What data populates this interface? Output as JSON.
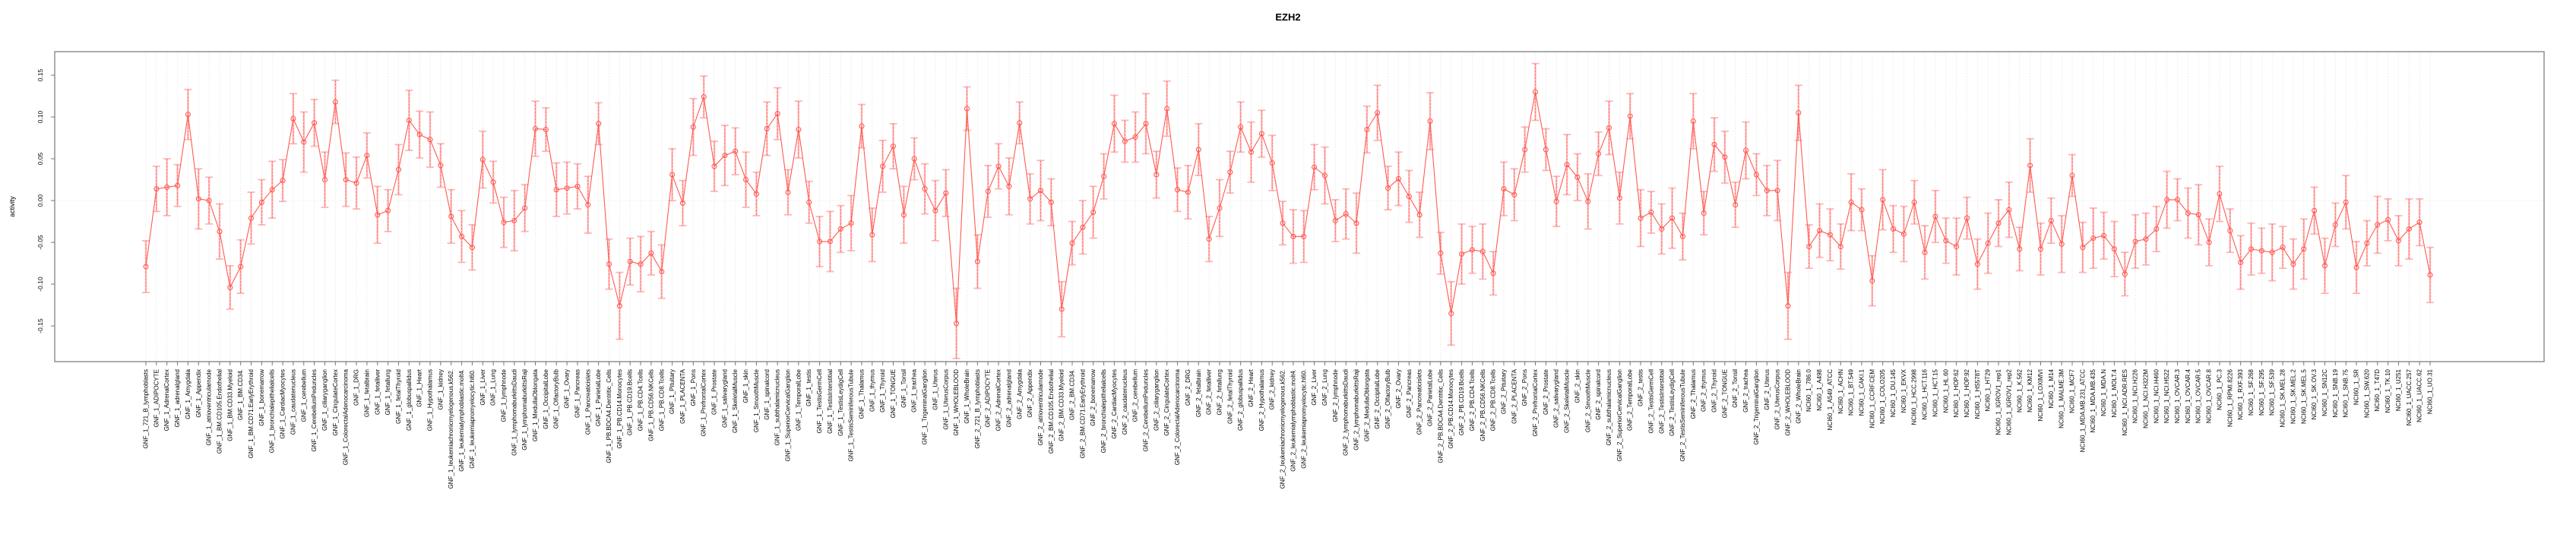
{
  "chart_data": {
    "type": "line",
    "title": "EZH2",
    "ylabel": "activity",
    "xlabel": "",
    "ylim": [
      -0.15,
      0.15
    ],
    "grid": "vertical-dotted-per-category-plus-zero-line",
    "legend": "none",
    "point_style": "open-circle-with-error-bars",
    "series_color": "#ff5a52",
    "error_color": "#ffadad",
    "grid_color": "#d8d8d8",
    "axis_color": "#888888",
    "y_ticks": [
      {
        "v": 0.15,
        "label": "0.15"
      },
      {
        "v": 0.1,
        "label": "0.10"
      },
      {
        "v": 0.05,
        "label": "0.05"
      },
      {
        "v": 0.0,
        "label": "0.00"
      },
      {
        "v": -0.05,
        "label": "-0.05"
      },
      {
        "v": -0.1,
        "label": "-0.10"
      },
      {
        "v": -0.15,
        "label": "-0.15"
      }
    ],
    "categories": [
      "GNF_1_721_B_lymphoblasts",
      "GNF_1_ADIPOCYTE",
      "GNF_1_AdrenalCortex",
      "GNF_1_adrenalgland",
      "GNF_1_Amygdala",
      "GNF_1_Appendix",
      "GNF_1_atrioventricularnode",
      "GNF_1_BM.CD105.Endothelial",
      "GNF_1_BM.CD33.Myeloid",
      "GNF_1_BM.CD34.",
      "GNF_1_BM.CD71.EarlyErythroid",
      "GNF_1_bonemarrow",
      "GNF_1_bronchialepithelialcells",
      "GNF_1_CardiacMyocytes",
      "GNF_1_caudatenucleus",
      "GNF_1_cerebellum",
      "GNF_1_CerebellumPeduncles",
      "GNF_1_ciliaryganglion",
      "GNF_1_CingulateCortex",
      "GNF_1_ColorectalAdenocarcinoma",
      "GNF_1_DRG",
      "GNF_1_fetalbrain",
      "GNF_1_fetalliver",
      "GNF_1_fetallung",
      "GNF_1_fetalThyroid",
      "GNF_1_globuspallidus",
      "GNF_1_Heart",
      "GNF_1_Hypothalamus",
      "GNF_1_kidney",
      "GNF_1_leukemiachronicmyelogenous.k562.",
      "GNF_1_leukemialymphoblastic.molt4.",
      "GNF_1_leukemiapromyelocytic.hl60.",
      "GNF_1_Liver",
      "GNF_1_Lung",
      "GNF_1_lymphnode",
      "GNF_1_lymphomaburkittsDaudi",
      "GNF_1_lymphomaburkittsRaji",
      "GNF_1_MedullaOblongata",
      "GNF_1_OccipitalLobe",
      "GNF_1_OlfactoryBulb",
      "GNF_1_Ovary",
      "GNF_1_Pancreas",
      "GNF_1_Pancreaticislets",
      "GNF_1_ParietalLobe",
      "GNF_1_PB.BDCA4.Dentritic_Cells",
      "GNF_1_PB.CD14.Monocytes",
      "GNF_1_PB.CD19.Bcells",
      "GNF_1_PB.CD4.Tcells",
      "GNF_1_PB.CD56.NKCells",
      "GNF_1_PB.CD8.Tcells",
      "GNF_1_Pituitary",
      "GNF_1_PLACENTA",
      "GNF_1_Pons",
      "GNF_1_PrefrontalCortex",
      "GNF_1_Prostate",
      "GNF_1_salivarygland",
      "GNF_1_SkeletalMuscle",
      "GNF_1_skin",
      "GNF_1_SmoothMuscle",
      "GNF_1_spinalcord",
      "GNF_1_subthalamicnucleus",
      "GNF_1_SuperiorCervicalGanglion",
      "GNF_1_TemporalLobe",
      "GNF_1_testis",
      "GNF_1_TestisGermCell",
      "GNF_1_TestisInterstitial",
      "GNF_1_TestisLeydigCell",
      "GNF_1_TestisSeminiferousTubule",
      "GNF_1_Thalamus",
      "GNF_1_thymus",
      "GNF_1_Thyroid",
      "GNF_1_TONGUE",
      "GNF_1_Tonsil",
      "GNF_1_trachea",
      "GNF_1_TrigeminalGanglion",
      "GNF_1_Uterus",
      "GNF_1_UterusCorpus",
      "GNF_1_WHOLEBLOOD",
      "GNF_1_WholeBrain",
      "GNF_2_721_B_lymphoblasts",
      "GNF_2_ADIPOCYTE",
      "GNF_2_AdrenalCortex",
      "GNF_2_adrenalgland",
      "GNF_2_Amygdala",
      "GNF_2_Appendix",
      "GNF_2_atrioventricularnode",
      "GNF_2_BM.CD105.Endothelial",
      "GNF_2_BM.CD33.Myeloid",
      "GNF_2_BM.CD34.",
      "GNF_2_BM.CD71.EarlyErythroid",
      "GNF_2_bonemarrow",
      "GNF_2_bronchialepithelialcells",
      "GNF_2_CardiacMyocytes",
      "GNF_2_caudatenucleus",
      "GNF_2_cerebellum",
      "GNF_2_CerebellumPeduncles",
      "GNF_2_ciliaryganglion",
      "GNF_2_CingulateCortex",
      "GNF_2_ColorectalAdenocarcinoma",
      "GNF_2_DRG",
      "GNF_2_fetalbrain",
      "GNF_2_fetalliver",
      "GNF_2_fetallung",
      "GNF_2_fetalThyroid",
      "GNF_2_globuspallidus",
      "GNF_2_Heart",
      "GNF_2_Hypothalamus",
      "GNF_2_kidney",
      "GNF_2_leukemiachronicmyelogenous.k562.",
      "GNF_2_leukemialymphoblastic.molt4.",
      "GNF_2_leukemiapromyelocytic.hl60.",
      "GNF_2_Liver",
      "GNF_2_Lung",
      "GNF_2_lymphnode",
      "GNF_2_lymphomaburkittsDaudi",
      "GNF_2_lymphomaburkittsRaji",
      "GNF_2_MedullaOblongata",
      "GNF_2_OccipitalLobe",
      "GNF_2_OlfactoryBulb",
      "GNF_2_Ovary",
      "GNF_2_Pancreas",
      "GNF_2_Pancreaticislets",
      "GNF_2_ParietalLobe",
      "GNF_2_PB.BDCA4.Dentritic_Cells",
      "GNF_2_PB.CD14.Monocytes",
      "GNF_2_PB.CD19.Bcells",
      "GNF_2_PB.CD4.Tcells",
      "GNF_2_PB.CD56.NKCells",
      "GNF_2_PB.CD8.Tcells",
      "GNF_2_Pituitary",
      "GNF_2_PLACENTA",
      "GNF_2_Pons",
      "GNF_2_PrefrontalCortex",
      "GNF_2_Prostate",
      "GNF_2_salivarygland",
      "GNF_2_SkeletalMuscle",
      "GNF_2_skin",
      "GNF_2_SmoothMuscle",
      "GNF_2_spinalcord",
      "GNF_2_subthalamicnucleus",
      "GNF_2_SuperiorCervicalGanglion",
      "GNF_2_TemporalLobe",
      "GNF_2_testis",
      "GNF_2_TestisGermCell",
      "GNF_2_TestisInterstitial",
      "GNF_2_TestisLeydigCell",
      "GNF_2_TestisSeminiferousTubule",
      "GNF_2_Thalamus",
      "GNF_2_thymus",
      "GNF_2_Thyroid",
      "GNF_2_TONGUE",
      "GNF_2_Tonsil",
      "GNF_2_trachea",
      "GNF_2_TrigeminalGanglion",
      "GNF_2_Uterus",
      "GNF_2_UterusCorpus",
      "GNF_2_WHOLEBLOOD",
      "GNF_2_WholeBrain",
      "NCI60_1_786.0",
      "NCI60_1_A498",
      "NCI60_1_A549_ATCC",
      "NCI60_1_ACHN",
      "NCI60_1_BT.549",
      "NCI60_1_CAKI.1",
      "NCI60_1_CCRF.CEM",
      "NCI60_1_COLO205",
      "NCI60_1_DU.145",
      "NCI60_1_EKVX",
      "NCI60_1_HCC.2998",
      "NCI60_1_HCT.116",
      "NCI60_1_HCT.15",
      "NCI60_1_HL.60",
      "NCI60_1_HOP.62",
      "NCI60_1_HOP.92",
      "NCI60_1_HS578T",
      "NCI60_1_HT29",
      "NCI60_1_IGROV1_rep1",
      "NCI60_1_IGROV1_rep2",
      "NCI60_1_K.562",
      "NCI60_1_KM12",
      "NCI60_1_LOXIMVI",
      "NCI60_1_M14",
      "NCI60_1_MALME.3M",
      "NCI60_1_MCF7",
      "NCI60_1_MDA.MB.231_ATCC",
      "NCI60_1_MDA.MB.435",
      "NCI60_1_MDA.N",
      "NCI60_1_MOLT.4",
      "NCI60_1_NCI.ADR.RES",
      "NCI60_1_NCI.H226",
      "NCI60_1_NCI.H322M",
      "NCI60_1_NCI.H460",
      "NCI60_1_NCI.H522",
      "NCI60_1_OVCAR.3",
      "NCI60_1_OVCAR.4",
      "NCI60_1_OVCAR.5",
      "NCI60_1_OVCAR.8",
      "NCI60_1_PC.3",
      "NCI60_1_RPMI.8226",
      "NCI60_1_RXF.393",
      "NCI60_1_SF.268",
      "NCI60_1_SF.295",
      "NCI60_1_SF.539",
      "NCI60_1_SK.MEL.28",
      "NCI60_1_SK.MEL.2",
      "NCI60_1_SK.MEL.5",
      "NCI60_1_SK.OV.3",
      "NCI60_1_SN12C",
      "NCI60_1_SNB.19",
      "NCI60_1_SNB.75",
      "NCI60_1_SR",
      "NCI60_1_SW.620",
      "NCI60_1_T47D",
      "NCI60_1_TK.10",
      "NCI60_1_U251",
      "NCI60_1_UACC.257",
      "NCI60_1_UACC.62",
      "NCI60_1_UO.31"
    ],
    "values": [
      -0.079,
      0.014,
      0.016,
      0.018,
      0.103,
      0.002,
      0.0,
      -0.037,
      -0.104,
      -0.079,
      -0.021,
      -0.002,
      0.013,
      0.024,
      0.098,
      0.07,
      0.093,
      0.025,
      0.118,
      0.025,
      0.021,
      0.054,
      -0.017,
      -0.012,
      0.037,
      0.096,
      0.079,
      0.073,
      0.042,
      -0.019,
      -0.043,
      -0.056,
      0.049,
      0.022,
      -0.026,
      -0.024,
      -0.009,
      0.086,
      0.085,
      0.013,
      0.015,
      0.017,
      -0.005,
      0.092,
      -0.076,
      -0.126,
      -0.073,
      -0.076,
      -0.063,
      -0.085,
      0.031,
      -0.003,
      0.088,
      0.124,
      0.041,
      0.054,
      0.059,
      0.025,
      0.008,
      0.086,
      0.104,
      0.01,
      0.085,
      -0.002,
      -0.049,
      -0.049,
      -0.034,
      -0.027,
      0.089,
      -0.041,
      0.041,
      0.065,
      -0.017,
      0.05,
      0.014,
      -0.012,
      0.009,
      -0.147,
      0.11,
      -0.073,
      0.011,
      0.041,
      0.017,
      0.093,
      0.002,
      0.012,
      -0.002,
      -0.13,
      -0.051,
      -0.032,
      -0.014,
      0.029,
      0.092,
      0.071,
      0.076,
      0.092,
      0.031,
      0.11,
      0.013,
      0.01,
      0.061,
      -0.046,
      -0.009,
      0.034,
      0.088,
      0.058,
      0.08,
      0.045,
      -0.027,
      -0.043,
      -0.043,
      0.04,
      0.03,
      -0.024,
      -0.016,
      -0.027,
      0.085,
      0.105,
      0.015,
      0.026,
      0.005,
      -0.017,
      0.095,
      -0.063,
      -0.135,
      -0.064,
      -0.059,
      -0.061,
      -0.087,
      0.014,
      0.007,
      0.061,
      0.13,
      0.061,
      -0.001,
      0.043,
      0.028,
      -0.001,
      0.056,
      0.087,
      0.003,
      0.101,
      -0.021,
      -0.014,
      -0.034,
      -0.021,
      -0.043,
      0.095,
      -0.015,
      0.067,
      0.052,
      -0.005,
      0.06,
      0.031,
      0.012,
      0.012,
      -0.126,
      0.105,
      -0.055,
      -0.036,
      -0.041,
      -0.055,
      -0.002,
      -0.011,
      -0.096,
      0.001,
      -0.034,
      -0.04,
      -0.002,
      -0.062,
      -0.019,
      -0.048,
      -0.055,
      -0.021,
      -0.076,
      -0.051,
      -0.027,
      -0.011,
      -0.058,
      0.042,
      -0.058,
      -0.024,
      -0.052,
      0.03,
      -0.056,
      -0.045,
      -0.042,
      -0.058,
      -0.088,
      -0.049,
      -0.046,
      -0.034,
      0.001,
      0.001,
      -0.015,
      -0.017,
      -0.05,
      0.008,
      -0.036,
      -0.074,
      -0.058,
      -0.06,
      -0.062,
      -0.056,
      -0.076,
      -0.058,
      -0.012,
      -0.078,
      -0.029,
      -0.002,
      -0.08,
      -0.051,
      -0.029,
      -0.023,
      -0.048,
      -0.034,
      -0.026,
      -0.089
    ],
    "errors": [
      0.031,
      0.027,
      0.034,
      0.025,
      0.03,
      0.036,
      0.028,
      0.033,
      0.026,
      0.032,
      0.031,
      0.027,
      0.034,
      0.025,
      0.03,
      0.036,
      0.028,
      0.033,
      0.026,
      0.032,
      0.031,
      0.027,
      0.034,
      0.025,
      0.03,
      0.036,
      0.028,
      0.033,
      0.026,
      0.032,
      0.031,
      0.027,
      0.034,
      0.025,
      0.03,
      0.036,
      0.028,
      0.033,
      0.026,
      0.032,
      0.031,
      0.027,
      0.034,
      0.025,
      0.03,
      0.04,
      0.028,
      0.033,
      0.026,
      0.032,
      0.031,
      0.027,
      0.034,
      0.025,
      0.03,
      0.036,
      0.028,
      0.033,
      0.026,
      0.032,
      0.031,
      0.027,
      0.034,
      0.025,
      0.03,
      0.036,
      0.028,
      0.033,
      0.026,
      0.032,
      0.031,
      0.027,
      0.034,
      0.025,
      0.03,
      0.036,
      0.028,
      0.042,
      0.026,
      0.032,
      0.031,
      0.027,
      0.034,
      0.025,
      0.03,
      0.036,
      0.028,
      0.033,
      0.026,
      0.032,
      0.031,
      0.027,
      0.034,
      0.025,
      0.03,
      0.036,
      0.028,
      0.033,
      0.026,
      0.032,
      0.031,
      0.027,
      0.034,
      0.025,
      0.03,
      0.036,
      0.028,
      0.033,
      0.026,
      0.032,
      0.031,
      0.027,
      0.034,
      0.025,
      0.03,
      0.036,
      0.028,
      0.033,
      0.026,
      0.032,
      0.031,
      0.027,
      0.034,
      0.025,
      0.038,
      0.036,
      0.028,
      0.033,
      0.026,
      0.032,
      0.031,
      0.027,
      0.034,
      0.025,
      0.03,
      0.036,
      0.028,
      0.033,
      0.026,
      0.032,
      0.031,
      0.027,
      0.034,
      0.025,
      0.03,
      0.036,
      0.028,
      0.033,
      0.026,
      0.032,
      0.031,
      0.027,
      0.034,
      0.025,
      0.03,
      0.036,
      0.04,
      0.033,
      0.026,
      0.032,
      0.031,
      0.027,
      0.034,
      0.025,
      0.03,
      0.036,
      0.028,
      0.033,
      0.026,
      0.032,
      0.031,
      0.027,
      0.034,
      0.025,
      0.03,
      0.036,
      0.028,
      0.033,
      0.026,
      0.032,
      0.031,
      0.027,
      0.034,
      0.025,
      0.03,
      0.036,
      0.028,
      0.033,
      0.026,
      0.032,
      0.031,
      0.027,
      0.034,
      0.025,
      0.03,
      0.036,
      0.028,
      0.033,
      0.026,
      0.032,
      0.031,
      0.027,
      0.034,
      0.025,
      0.03,
      0.036,
      0.028,
      0.033,
      0.026,
      0.032,
      0.031,
      0.027,
      0.034,
      0.025,
      0.03,
      0.036,
      0.028,
      0.033
    ]
  }
}
